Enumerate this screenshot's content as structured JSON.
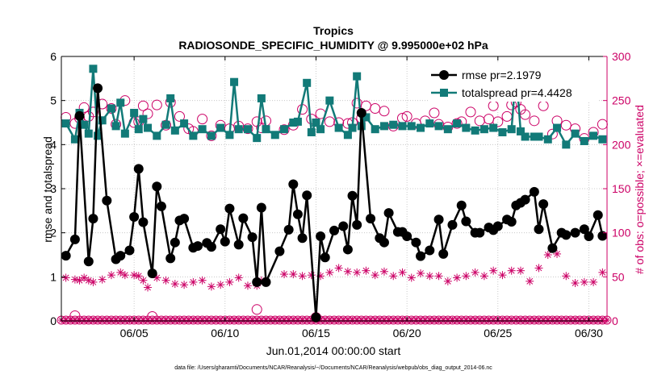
{
  "colors": {
    "rmse": "#000000",
    "spread": "#127a78",
    "obs": "#cc0066",
    "frame": "#000000",
    "background": "#ffffff"
  },
  "chart_data": {
    "type": "line",
    "title": "Tropics",
    "subtitle": "RADIOSONDE_SPECIFIC_HUMIDITY @ 9.995000e+02 hPa",
    "xlabel": "Jun.01,2014 00:00:00 start",
    "ylabel_left": "rmse and totalspread",
    "ylabel_right": "# of obs: o=possible; ×=evaluated",
    "footnote": "data file: /Users/gharamti/Documents/NCAR/Reanalysis/~/Documents/NCAR/Reanalysis/webpub/obs_diag_output_2014-06.nc",
    "xlim": [
      1,
      31
    ],
    "ylim_left": [
      0,
      6
    ],
    "ylim_right": [
      0,
      300
    ],
    "x_ticks": [
      5,
      10,
      15,
      20,
      25,
      30
    ],
    "x_tick_labels": [
      "06/05",
      "06/10",
      "06/15",
      "06/20",
      "06/25",
      "06/30"
    ],
    "y_left_ticks": [
      0,
      1,
      2,
      3,
      4,
      5,
      6
    ],
    "y_left_tick_labels": [
      "0",
      "1",
      "2",
      "3",
      "4",
      "5",
      "6"
    ],
    "y_right_ticks": [
      0,
      50,
      100,
      150,
      200,
      250,
      300
    ],
    "y_right_tick_labels": [
      "0",
      "50",
      "100",
      "150",
      "200",
      "250",
      "300"
    ],
    "legend": [
      {
        "key": "rmse",
        "label": "rmse pr=2.1979"
      },
      {
        "key": "spread",
        "label": "totalspread pr=4.4428"
      }
    ],
    "series": [
      {
        "name": "rmse",
        "axis": "left",
        "x": [
          1.25,
          1.75,
          2.0,
          2.5,
          2.75,
          3.0,
          3.5,
          4.0,
          4.25,
          4.75,
          5.0,
          5.25,
          5.5,
          6.0,
          6.25,
          6.5,
          7.0,
          7.25,
          7.5,
          7.75,
          8.25,
          8.5,
          9.0,
          9.25,
          9.75,
          10.0,
          10.25,
          10.75,
          11.0,
          11.5,
          11.75,
          12.0,
          12.25,
          13.0,
          13.5,
          13.75,
          14.0,
          14.25,
          14.5,
          15.0,
          15.25,
          15.5,
          16.0,
          16.5,
          16.75,
          17.0,
          17.25,
          17.5,
          18.0,
          18.5,
          18.75,
          19.0,
          19.5,
          19.75,
          20.0,
          20.5,
          20.75,
          21.25,
          21.75,
          22.0,
          22.5,
          23.0,
          23.25,
          23.75,
          24.0,
          24.5,
          24.75,
          25.0,
          25.5,
          25.75,
          26.0,
          26.25,
          26.5,
          27.0,
          27.25,
          27.5,
          28.0,
          28.5,
          28.75,
          29.25,
          29.75,
          30.0,
          30.5,
          30.75
        ],
        "y": [
          1.48,
          1.85,
          4.65,
          1.35,
          2.32,
          5.28,
          2.73,
          1.4,
          1.48,
          1.6,
          2.36,
          3.45,
          2.24,
          1.08,
          3.05,
          2.6,
          1.42,
          1.78,
          2.28,
          2.32,
          1.66,
          1.7,
          1.77,
          1.68,
          2.08,
          1.8,
          2.55,
          1.73,
          2.33,
          1.9,
          0.88,
          2.57,
          0.88,
          1.58,
          2.07,
          3.1,
          2.42,
          1.88,
          2.85,
          0.08,
          1.92,
          1.44,
          2.05,
          2.15,
          1.62,
          2.84,
          2.18,
          4.72,
          2.32,
          1.88,
          1.78,
          2.45,
          2.02,
          2.02,
          1.92,
          1.78,
          1.47,
          1.6,
          2.3,
          1.52,
          2.18,
          2.62,
          2.26,
          2.0,
          2.0,
          2.12,
          2.06,
          2.15,
          2.3,
          2.25,
          2.62,
          2.68,
          2.75,
          2.93,
          2.08,
          2.65,
          1.65,
          2.0,
          1.95,
          2.0,
          2.08,
          1.92,
          2.4,
          1.93
        ]
      },
      {
        "name": "totalspread",
        "axis": "left",
        "x": [
          1.25,
          1.75,
          2.0,
          2.25,
          2.5,
          2.75,
          3.0,
          3.25,
          3.75,
          4.0,
          4.25,
          4.5,
          5.0,
          5.25,
          5.5,
          5.75,
          6.25,
          6.75,
          7.0,
          7.25,
          7.75,
          8.25,
          8.75,
          9.25,
          9.75,
          10.25,
          10.5,
          10.75,
          11.25,
          11.75,
          12.0,
          12.25,
          12.75,
          13.25,
          13.75,
          14.0,
          14.5,
          14.75,
          15.0,
          15.25,
          15.75,
          16.25,
          16.75,
          17.0,
          17.25,
          17.5,
          17.75,
          18.25,
          18.75,
          19.25,
          19.75,
          20.25,
          20.75,
          21.25,
          21.75,
          22.25,
          22.75,
          23.25,
          23.75,
          24.25,
          24.75,
          25.25,
          25.75,
          26.0,
          26.25,
          26.5,
          27.0,
          27.25,
          27.75,
          28.25,
          28.75,
          29.25,
          29.75,
          30.25,
          30.75
        ],
        "y": [
          4.48,
          4.12,
          4.72,
          4.45,
          4.25,
          5.72,
          4.2,
          4.55,
          4.82,
          4.42,
          4.95,
          4.25,
          4.72,
          4.35,
          4.58,
          4.38,
          4.2,
          4.45,
          5.05,
          4.32,
          4.48,
          4.2,
          4.35,
          4.2,
          4.38,
          4.22,
          5.42,
          4.35,
          4.35,
          4.15,
          5.05,
          4.35,
          4.22,
          4.35,
          4.5,
          4.52,
          5.4,
          4.28,
          4.5,
          4.35,
          5.0,
          4.38,
          4.22,
          4.38,
          5.55,
          4.42,
          4.62,
          4.35,
          4.42,
          4.45,
          4.42,
          4.42,
          4.38,
          4.48,
          4.42,
          4.35,
          4.48,
          4.38,
          4.32,
          4.35,
          4.38,
          4.28,
          4.35,
          5.65,
          4.3,
          4.18,
          4.18,
          4.18,
          4.12,
          4.38,
          4.0,
          4.25,
          4.08,
          4.2,
          4.12
        ]
      },
      {
        "name": "obs possible",
        "axis": "right",
        "marker": "circle",
        "x": [
          1.25,
          1.75,
          2.0,
          2.25,
          2.5,
          2.75,
          3.25,
          3.75,
          4.0,
          4.5,
          5.0,
          5.25,
          5.5,
          5.75,
          6.25,
          6.75,
          7.0,
          7.5,
          8.0,
          8.25,
          8.75,
          9.25,
          9.75,
          10.25,
          10.75,
          11.25,
          11.75,
          12.0,
          12.25,
          13.25,
          13.75,
          14.25,
          14.75,
          15.25,
          15.75,
          16.25,
          16.75,
          17.0,
          17.25,
          17.5,
          17.75,
          18.25,
          18.75,
          19.25,
          19.75,
          20.0,
          20.5,
          21.0,
          21.5,
          21.75,
          22.25,
          22.75,
          23.0,
          23.5,
          24.0,
          24.5,
          24.75,
          25.0,
          25.5,
          25.75,
          26.0,
          26.25,
          26.5,
          27.0,
          27.5,
          28.0,
          28.25,
          28.75,
          29.25,
          29.75,
          30.25,
          30.75
        ],
        "y": [
          231,
          224,
          230,
          242,
          232,
          237,
          246,
          241,
          223,
          250,
          225,
          226,
          244,
          235,
          245,
          222,
          248,
          232,
          218,
          215,
          229,
          210,
          222,
          218,
          221,
          218,
          226,
          219,
          227,
          217,
          222,
          240,
          229,
          235,
          226,
          225,
          224,
          225,
          247,
          230,
          244,
          241,
          238,
          221,
          230,
          232,
          224,
          227,
          236,
          223,
          220,
          224,
          226,
          237,
          227,
          229,
          244,
          226,
          232,
          245,
          248,
          240,
          234,
          227,
          244,
          212,
          227,
          222,
          218,
          207,
          214,
          223
        ]
      },
      {
        "name": "obs evaluated",
        "axis": "right",
        "marker": "asterisk",
        "x": [
          1.25,
          1.75,
          2.0,
          2.25,
          2.5,
          2.75,
          3.25,
          3.75,
          4.25,
          4.5,
          5.0,
          5.25,
          5.5,
          5.75,
          6.25,
          6.75,
          7.25,
          7.75,
          8.25,
          8.75,
          9.25,
          9.75,
          10.25,
          10.75,
          11.25,
          11.75,
          12.0,
          12.25,
          13.25,
          13.75,
          14.25,
          14.75,
          15.25,
          15.75,
          16.25,
          16.75,
          17.25,
          17.75,
          18.25,
          18.75,
          19.25,
          19.75,
          20.25,
          20.75,
          21.25,
          21.75,
          22.25,
          22.75,
          23.25,
          23.75,
          24.25,
          24.75,
          25.25,
          25.75,
          26.25,
          26.75,
          27.25,
          27.75,
          28.25,
          28.75,
          29.25,
          29.75,
          30.25,
          30.75
        ],
        "y": [
          49,
          47,
          46,
          49,
          46,
          44,
          47,
          52,
          55,
          52,
          52,
          51,
          46,
          38,
          49,
          46,
          42,
          41,
          44,
          46,
          39,
          41,
          44,
          49,
          40,
          40,
          46,
          44,
          53,
          53,
          51,
          52,
          51,
          55,
          60,
          56,
          55,
          57,
          52,
          56,
          51,
          55,
          49,
          54,
          51,
          51,
          45,
          49,
          51,
          55,
          51,
          57,
          52,
          57,
          57,
          45,
          60,
          75,
          76,
          51,
          43,
          44,
          44,
          55
        ]
      }
    ],
    "obs_zero_rows": {
      "possible_y": 0,
      "evaluated_y": 0,
      "x_start": 1,
      "x_end": 31,
      "step": 0.25,
      "highlight": [
        {
          "x": 1.75,
          "y": 6
        },
        {
          "x": 11.75,
          "y": 13
        },
        {
          "x": 6.0,
          "y": 5
        },
        {
          "x": 15.0,
          "y": 4
        }
      ]
    }
  }
}
